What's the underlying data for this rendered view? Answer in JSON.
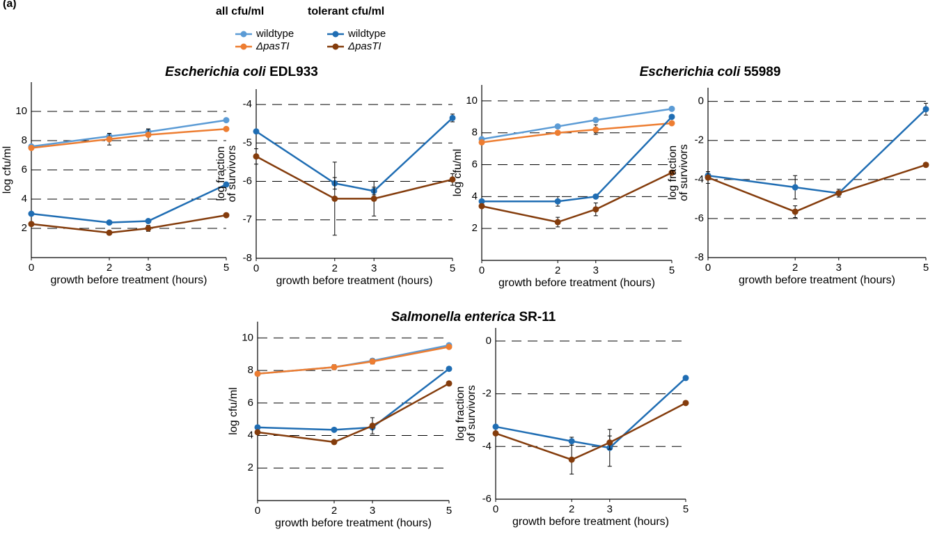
{
  "panel_label": "(a)",
  "legend": {
    "groups": [
      {
        "title": "all cfu/ml",
        "entries": [
          {
            "name": "wildtype",
            "color": "#5b9bd5"
          },
          {
            "name": "ΔpasTI",
            "color": "#ed7d31"
          }
        ]
      },
      {
        "title": "tolerant cfu/ml",
        "entries": [
          {
            "name": "wildtype",
            "color": "#1f6db3"
          },
          {
            "name": "ΔpasTI",
            "color": "#843c0c"
          }
        ]
      }
    ]
  },
  "titles": [
    {
      "species": "Escherichia coli",
      "strain": "EDL933"
    },
    {
      "species": "Escherichia coli",
      "strain": "55989"
    },
    {
      "species": "Salmonella enterica",
      "strain": "SR-11"
    }
  ],
  "chart_data": [
    {
      "type": "line",
      "ylabel": [
        "log cfu/ml"
      ],
      "xlabel": "growth before treatment (hours)",
      "x": [
        0,
        2,
        3,
        5
      ],
      "xlim": [
        0,
        5
      ],
      "xticks": [
        0,
        2,
        3,
        5
      ],
      "ylim": [
        0,
        12
      ],
      "yticks": [
        2,
        4,
        6,
        8,
        10
      ],
      "grid": "dashed",
      "series": [
        {
          "color": "#5b9bd5",
          "values": [
            7.6,
            8.3,
            8.6,
            9.4
          ],
          "errors": [
            null,
            0.2,
            0.2,
            null
          ]
        },
        {
          "color": "#ed7d31",
          "values": [
            7.5,
            8.1,
            8.4,
            8.8
          ],
          "errors": [
            null,
            0.4,
            0.4,
            null
          ]
        },
        {
          "color": "#1f6db3",
          "values": [
            3.0,
            2.4,
            2.5,
            5.0
          ],
          "errors": [
            null,
            null,
            null,
            null
          ]
        },
        {
          "color": "#843c0c",
          "values": [
            2.3,
            1.7,
            2.0,
            2.9
          ],
          "errors": [
            null,
            null,
            0.2,
            null
          ]
        }
      ]
    },
    {
      "type": "line",
      "ylabel": [
        "log fraction",
        "of survivors"
      ],
      "xlabel": "growth before treatment (hours)",
      "x": [
        0,
        2,
        3,
        5
      ],
      "xlim": [
        0,
        5
      ],
      "xticks": [
        0,
        2,
        3,
        5
      ],
      "ylim": [
        -8,
        -3.6
      ],
      "yticks": [
        -8,
        -7,
        -6,
        -5,
        -4
      ],
      "grid": "dashed",
      "series": [
        {
          "color": "#1f6db3",
          "values": [
            -4.7,
            -6.05,
            -6.25,
            -4.35
          ],
          "errors": [
            null,
            0.15,
            0.1,
            0.1
          ]
        },
        {
          "color": "#843c0c",
          "values": [
            -5.35,
            -6.45,
            -6.45,
            -5.95
          ],
          "errors": [
            0.2,
            0.95,
            0.45,
            0.15
          ]
        }
      ]
    },
    {
      "type": "line",
      "ylabel": [
        "log cfu/ml"
      ],
      "xlabel": "growth before treatment (hours)",
      "x": [
        0,
        2,
        3,
        5
      ],
      "xlim": [
        0,
        5
      ],
      "xticks": [
        0,
        2,
        3,
        5
      ],
      "ylim": [
        0,
        11
      ],
      "yticks": [
        2,
        4,
        6,
        8,
        10
      ],
      "grid": "dashed",
      "series": [
        {
          "color": "#5b9bd5",
          "values": [
            7.6,
            8.4,
            8.8,
            9.5
          ],
          "errors": [
            null,
            null,
            null,
            null
          ]
        },
        {
          "color": "#ed7d31",
          "values": [
            7.4,
            8.0,
            8.2,
            8.6
          ],
          "errors": [
            null,
            null,
            0.3,
            null
          ]
        },
        {
          "color": "#1f6db3",
          "values": [
            3.7,
            3.7,
            4.0,
            9.0
          ],
          "errors": [
            null,
            0.3,
            null,
            null
          ]
        },
        {
          "color": "#843c0c",
          "values": [
            3.4,
            2.4,
            3.2,
            5.5
          ],
          "errors": [
            null,
            0.3,
            0.4,
            null
          ]
        }
      ]
    },
    {
      "type": "line",
      "ylabel": [
        "log fraction",
        "of survivors"
      ],
      "xlabel": "growth before treatment (hours)",
      "x": [
        0,
        2,
        3,
        5
      ],
      "xlim": [
        0,
        5
      ],
      "xticks": [
        0,
        2,
        3,
        5
      ],
      "ylim": [
        -8,
        0.7
      ],
      "yticks": [
        -8,
        -6,
        -4,
        -2,
        0
      ],
      "grid": "dashed",
      "series": [
        {
          "color": "#1f6db3",
          "values": [
            -3.8,
            -4.4,
            -4.7,
            -0.4
          ],
          "errors": [
            0.2,
            0.6,
            0.2,
            0.3
          ]
        },
        {
          "color": "#843c0c",
          "values": [
            -3.9,
            -5.65,
            -4.7,
            -3.25
          ],
          "errors": [
            0.3,
            0.3,
            null,
            null
          ]
        }
      ]
    },
    {
      "type": "line",
      "ylabel": [
        "log cfu/ml"
      ],
      "xlabel": "growth before treatment (hours)",
      "x": [
        0,
        2,
        3,
        5
      ],
      "xlim": [
        0,
        5
      ],
      "xticks": [
        0,
        2,
        3,
        5
      ],
      "ylim": [
        0,
        11
      ],
      "yticks": [
        2,
        4,
        6,
        8,
        10
      ],
      "grid": "dashed",
      "series": [
        {
          "color": "#5b9bd5",
          "values": [
            7.8,
            8.2,
            8.6,
            9.55
          ],
          "errors": [
            null,
            null,
            null,
            null
          ]
        },
        {
          "color": "#ed7d31",
          "values": [
            7.8,
            8.2,
            8.55,
            9.45
          ],
          "errors": [
            null,
            0.15,
            0.15,
            null
          ]
        },
        {
          "color": "#1f6db3",
          "values": [
            4.5,
            4.35,
            4.5,
            8.1
          ],
          "errors": [
            null,
            null,
            null,
            null
          ]
        },
        {
          "color": "#843c0c",
          "values": [
            4.2,
            3.6,
            4.6,
            7.2
          ],
          "errors": [
            null,
            null,
            0.5,
            null
          ]
        }
      ]
    },
    {
      "type": "line",
      "ylabel": [
        "log fraction",
        "of survivors"
      ],
      "xlabel": "growth before treatment (hours)",
      "x": [
        0,
        2,
        3,
        5
      ],
      "xlim": [
        0,
        5
      ],
      "xticks": [
        0,
        2,
        3,
        5
      ],
      "ylim": [
        -6,
        0.5
      ],
      "yticks": [
        -6,
        -4,
        -2,
        0
      ],
      "grid": "dashed",
      "series": [
        {
          "color": "#1f6db3",
          "values": [
            -3.25,
            -3.8,
            -4.05,
            -1.4
          ],
          "errors": [
            null,
            0.15,
            0.7,
            null
          ]
        },
        {
          "color": "#843c0c",
          "values": [
            -3.5,
            -4.5,
            -3.85,
            -2.35
          ],
          "errors": [
            null,
            0.55,
            0.25,
            null
          ]
        }
      ]
    }
  ]
}
